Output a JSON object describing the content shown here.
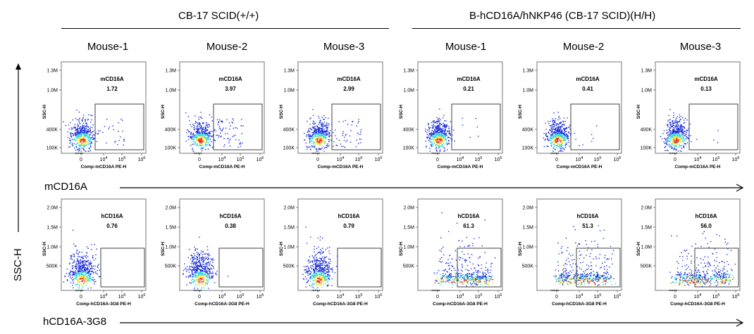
{
  "groups": {
    "left": "CB-17 SCID(+/+)",
    "right": "B-hCD16A/hNKP46 (CB-17 SCID)(H/H)"
  },
  "mice": [
    "Mouse-1",
    "Mouse-2",
    "Mouse-3",
    "Mouse-1",
    "Mouse-2",
    "Mouse-3"
  ],
  "row_labels": {
    "top": "mCD16A",
    "bottom": "hCD16A-3G8",
    "y_axis": "SSC-H"
  },
  "colors": {
    "density_low": "#1a2dd6",
    "density_mid": "#2fd6e0",
    "density_high": "#f2e431",
    "density_peak": "#e8321e"
  },
  "chart_data": [
    {
      "type": "scatter",
      "row": "mCD16A",
      "ylabel": "SSC-H",
      "xlabel": "Comp-mCD16A PE-H",
      "marker": "mCD16A",
      "ytick_labels": [
        "100K",
        "400K",
        "1.0M",
        "1.3M"
      ],
      "xtick_labels": [
        "0",
        "10^4",
        "10^5",
        "10^6"
      ],
      "panels": [
        {
          "mouse": "Mouse-1",
          "group": "CB-17 SCID(+/+)",
          "gate_percent": "1.72"
        },
        {
          "mouse": "Mouse-2",
          "group": "CB-17 SCID(+/+)",
          "gate_percent": "3.97"
        },
        {
          "mouse": "Mouse-3",
          "group": "CB-17 SCID(+/+)",
          "gate_percent": "2.99"
        },
        {
          "mouse": "Mouse-1",
          "group": "B-hCD16A/hNKP46 (CB-17 SCID)(H/H)",
          "gate_percent": "0.21"
        },
        {
          "mouse": "Mouse-2",
          "group": "B-hCD16A/hNKP46 (CB-17 SCID)(H/H)",
          "gate_percent": "0.41"
        },
        {
          "mouse": "Mouse-3",
          "group": "B-hCD16A/hNKP46 (CB-17 SCID)(H/H)",
          "gate_percent": "0.13"
        }
      ]
    },
    {
      "type": "scatter",
      "row": "hCD16A-3G8",
      "ylabel": "SSC-H",
      "xlabel": "Comp-hCD16A-3G8 PE-H",
      "marker": "hCD16A",
      "ytick_labels": [
        "500K",
        "1.0M",
        "1.5M",
        "2.0M"
      ],
      "xtick_labels": [
        "0",
        "10^4",
        "10^5",
        "10^6"
      ],
      "panels": [
        {
          "mouse": "Mouse-1",
          "group": "CB-17 SCID(+/+)",
          "gate_percent": "0.76"
        },
        {
          "mouse": "Mouse-2",
          "group": "CB-17 SCID(+/+)",
          "gate_percent": "0.38"
        },
        {
          "mouse": "Mouse-3",
          "group": "CB-17 SCID(+/+)",
          "gate_percent": "0.79"
        },
        {
          "mouse": "Mouse-1",
          "group": "B-hCD16A/hNKP46 (CB-17 SCID)(H/H)",
          "gate_percent": "61.3"
        },
        {
          "mouse": "Mouse-2",
          "group": "B-hCD16A/hNKP46 (CB-17 SCID)(H/H)",
          "gate_percent": "51.3"
        },
        {
          "mouse": "Mouse-3",
          "group": "B-hCD16A/hNKP46 (CB-17 SCID)(H/H)",
          "gate_percent": "56.0"
        }
      ]
    }
  ]
}
